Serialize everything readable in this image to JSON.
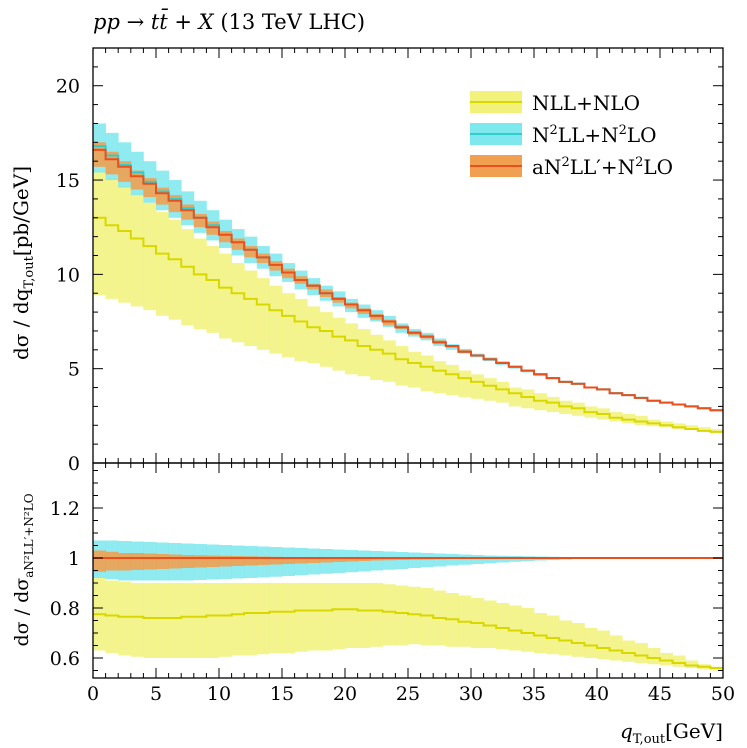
{
  "chart_data": {
    "type": "line",
    "title": "pp → tt̄ + X (13 TeV LHC)",
    "title_parts": {
      "proc": "pp",
      "arrow": " → ",
      "tt": "tt̄",
      "plusx": " + X",
      "energy": " (13 TeV LHC)"
    },
    "xlabel": {
      "q": "q",
      "sub": "T,out",
      "unit": "[GeV]"
    },
    "ylabel_main": {
      "d1": "dσ",
      "slash": " / ",
      "d2": "dq",
      "sub": "T,out",
      "unit": "[pb/GeV]"
    },
    "ylabel_ratio": {
      "d1": "dσ",
      "slash": " / ",
      "d2": "dσ",
      "sub": "aN²LL′+N²LO"
    },
    "xlim": [
      0,
      50
    ],
    "ylim_main": [
      0,
      22
    ],
    "ylim_ratio": [
      0.52,
      1.38
    ],
    "xticks": [
      "0",
      "5",
      "10",
      "15",
      "20",
      "25",
      "30",
      "35",
      "40",
      "45",
      "50"
    ],
    "yticks_main": [
      "0",
      "5",
      "10",
      "15",
      "20"
    ],
    "yticks_ratio": [
      "0.6",
      "0.8",
      "1",
      "1.2"
    ],
    "legend": {
      "placement": "top-right",
      "entries": [
        {
          "base": "NLL+NLO"
        },
        {
          "base": "N",
          "sup1": "2",
          "mid": "LL+N",
          "sup2": "2",
          "end": "LO"
        },
        {
          "base": "aN",
          "sup1": "2",
          "mid": "LL′+N",
          "sup2": "2",
          "end": "LO"
        }
      ]
    },
    "bin_width": 1,
    "series": [
      {
        "name": "NLL+NLO",
        "line_color": "#d8d800",
        "band_color": "#f2f27a",
        "central": [
          13.0,
          12.6,
          12.3,
          11.9,
          11.5,
          11.1,
          10.8,
          10.4,
          10.0,
          9.7,
          9.3,
          9.0,
          8.7,
          8.4,
          8.1,
          7.8,
          7.5,
          7.2,
          7.0,
          6.7,
          6.5,
          6.2,
          6.0,
          5.8,
          5.5,
          5.3,
          5.1,
          4.9,
          4.7,
          4.5,
          4.3,
          4.1,
          3.9,
          3.7,
          3.5,
          3.3,
          3.2,
          3.0,
          2.9,
          2.7,
          2.6,
          2.4,
          2.3,
          2.2,
          2.1,
          2.0,
          1.9,
          1.8,
          1.7,
          1.65
        ],
        "lower": [
          8.9,
          8.7,
          8.5,
          8.3,
          8.1,
          7.8,
          7.6,
          7.3,
          7.1,
          6.9,
          6.6,
          6.4,
          6.2,
          6.0,
          5.8,
          5.6,
          5.4,
          5.3,
          5.1,
          4.9,
          4.7,
          4.6,
          4.4,
          4.3,
          4.1,
          4.0,
          3.8,
          3.7,
          3.6,
          3.5,
          3.4,
          3.3,
          3.2,
          3.0,
          2.9,
          2.8,
          2.7,
          2.6,
          2.5,
          2.4,
          2.3,
          2.2,
          2.1,
          2.0,
          1.95,
          1.9,
          1.8,
          1.75,
          1.7,
          1.62
        ],
        "upper": [
          15.5,
          15.1,
          14.7,
          14.3,
          13.8,
          13.3,
          12.9,
          12.4,
          11.9,
          11.5,
          11.1,
          10.6,
          10.2,
          9.8,
          9.4,
          9.0,
          8.7,
          8.3,
          8.0,
          7.7,
          7.4,
          7.1,
          6.8,
          6.5,
          6.2,
          5.9,
          5.7,
          5.4,
          5.2,
          4.9,
          4.7,
          4.5,
          4.3,
          4.0,
          3.9,
          3.7,
          3.5,
          3.3,
          3.2,
          3.0,
          2.9,
          2.7,
          2.6,
          2.5,
          2.3,
          2.2,
          2.1,
          2.0,
          1.9,
          1.8
        ],
        "ratio_central": [
          0.775,
          0.77,
          0.765,
          0.765,
          0.76,
          0.76,
          0.76,
          0.765,
          0.765,
          0.77,
          0.77,
          0.775,
          0.78,
          0.78,
          0.785,
          0.785,
          0.79,
          0.79,
          0.79,
          0.795,
          0.795,
          0.79,
          0.79,
          0.785,
          0.78,
          0.775,
          0.77,
          0.76,
          0.755,
          0.745,
          0.74,
          0.73,
          0.72,
          0.71,
          0.7,
          0.69,
          0.68,
          0.67,
          0.66,
          0.65,
          0.64,
          0.63,
          0.62,
          0.61,
          0.6,
          0.59,
          0.58,
          0.57,
          0.565,
          0.56
        ],
        "ratio_lower": [
          0.63,
          0.62,
          0.61,
          0.605,
          0.6,
          0.6,
          0.6,
          0.6,
          0.6,
          0.6,
          0.605,
          0.61,
          0.61,
          0.615,
          0.62,
          0.62,
          0.625,
          0.63,
          0.63,
          0.635,
          0.64,
          0.64,
          0.645,
          0.65,
          0.65,
          0.655,
          0.65,
          0.65,
          0.645,
          0.645,
          0.64,
          0.64,
          0.635,
          0.63,
          0.625,
          0.62,
          0.615,
          0.61,
          0.605,
          0.6,
          0.595,
          0.59,
          0.585,
          0.58,
          0.575,
          0.57,
          0.565,
          0.56,
          0.555,
          0.55
        ],
        "ratio_upper": [
          0.92,
          0.91,
          0.905,
          0.9,
          0.9,
          0.9,
          0.9,
          0.9,
          0.9,
          0.9,
          0.9,
          0.9,
          0.9,
          0.9,
          0.9,
          0.9,
          0.9,
          0.9,
          0.9,
          0.9,
          0.9,
          0.9,
          0.9,
          0.895,
          0.89,
          0.885,
          0.88,
          0.87,
          0.86,
          0.85,
          0.84,
          0.83,
          0.82,
          0.81,
          0.8,
          0.78,
          0.77,
          0.75,
          0.74,
          0.72,
          0.71,
          0.69,
          0.67,
          0.66,
          0.64,
          0.62,
          0.61,
          0.59,
          0.575,
          0.565
        ]
      },
      {
        "name": "N²LL+N²LO",
        "line_color": "#33cccc",
        "band_color": "#7de8ee",
        "central": [
          16.8,
          16.3,
          15.8,
          15.4,
          14.9,
          14.4,
          14.0,
          13.5,
          13.0,
          12.6,
          12.1,
          11.7,
          11.3,
          10.9,
          10.5,
          10.1,
          9.7,
          9.4,
          9.0,
          8.7,
          8.4,
          8.1,
          7.8,
          7.5,
          7.2,
          6.9,
          6.7,
          6.4,
          6.2,
          5.9,
          5.7,
          5.5,
          5.3,
          5.1,
          4.9,
          4.7,
          4.5,
          4.3,
          4.2,
          4.0,
          3.9,
          3.7,
          3.6,
          3.45,
          3.3,
          3.2,
          3.1,
          3.0,
          2.9,
          2.8
        ],
        "lower": [
          15.4,
          15.0,
          14.6,
          14.2,
          13.8,
          13.4,
          13.0,
          12.6,
          12.2,
          11.8,
          11.4,
          11.0,
          10.6,
          10.3,
          9.9,
          9.6,
          9.2,
          8.9,
          8.6,
          8.3,
          8.0,
          7.7,
          7.5,
          7.2,
          6.9,
          6.7,
          6.5,
          6.2,
          6.0,
          5.8,
          5.6,
          5.4,
          5.2,
          5.0,
          4.8,
          4.6,
          4.45,
          4.3,
          4.15,
          4.0,
          3.85,
          3.7,
          3.55,
          3.45,
          3.3,
          3.2,
          3.1,
          3.0,
          2.9,
          2.8
        ],
        "upper": [
          18.0,
          17.5,
          17.0,
          16.5,
          16.0,
          15.5,
          15.0,
          14.4,
          13.9,
          13.4,
          12.9,
          12.4,
          12.0,
          11.5,
          11.1,
          10.6,
          10.2,
          9.8,
          9.4,
          9.1,
          8.7,
          8.4,
          8.1,
          7.8,
          7.4,
          7.1,
          6.9,
          6.6,
          6.3,
          6.05,
          5.8,
          5.6,
          5.4,
          5.15,
          4.95,
          4.75,
          4.55,
          4.35,
          4.2,
          4.05,
          3.9,
          3.75,
          3.6,
          3.45,
          3.3,
          3.2,
          3.1,
          3.0,
          2.9,
          2.8
        ],
        "ratio_central": [
          1.0,
          1.0,
          1.0,
          1.0,
          1.0,
          1.0,
          1.0,
          1.0,
          1.0,
          1.0,
          1.0,
          1.0,
          1.0,
          1.0,
          1.0,
          1.0,
          1.0,
          1.0,
          1.0,
          1.0,
          1.0,
          1.0,
          1.0,
          1.0,
          1.0,
          1.0,
          1.0,
          1.0,
          1.0,
          1.0,
          1.0,
          1.0,
          1.0,
          1.0,
          1.0,
          1.0,
          1.0,
          1.0,
          1.0,
          1.0,
          1.0,
          1.0,
          1.0,
          1.0,
          1.0,
          1.0,
          1.0,
          1.0,
          1.0,
          1.0
        ],
        "ratio_lower": [
          0.92,
          0.915,
          0.91,
          0.91,
          0.91,
          0.91,
          0.91,
          0.91,
          0.912,
          0.914,
          0.916,
          0.918,
          0.92,
          0.922,
          0.925,
          0.928,
          0.931,
          0.934,
          0.937,
          0.94,
          0.943,
          0.946,
          0.95,
          0.953,
          0.956,
          0.96,
          0.963,
          0.966,
          0.97,
          0.973,
          0.976,
          0.979,
          0.982,
          0.985,
          0.988,
          0.99,
          0.992,
          0.994,
          0.996,
          0.997,
          0.998,
          0.999,
          0.999,
          1.0,
          1.0,
          1.0,
          1.0,
          1.0,
          1.0,
          1.0
        ],
        "ratio_upper": [
          1.07,
          1.07,
          1.068,
          1.066,
          1.064,
          1.062,
          1.06,
          1.058,
          1.056,
          1.054,
          1.052,
          1.05,
          1.048,
          1.046,
          1.044,
          1.042,
          1.04,
          1.038,
          1.036,
          1.034,
          1.032,
          1.03,
          1.028,
          1.026,
          1.024,
          1.022,
          1.02,
          1.018,
          1.016,
          1.014,
          1.012,
          1.01,
          1.009,
          1.008,
          1.007,
          1.006,
          1.005,
          1.004,
          1.003,
          1.002,
          1.002,
          1.001,
          1.001,
          1.001,
          1.0,
          1.0,
          1.0,
          1.0,
          1.0,
          1.0
        ]
      },
      {
        "name": "aN²LL′+N²LO",
        "line_color": "#e8501e",
        "band_color": "#f0a050",
        "central": [
          16.6,
          16.1,
          15.7,
          15.2,
          14.8,
          14.3,
          13.9,
          13.4,
          13.0,
          12.5,
          12.1,
          11.7,
          11.3,
          10.9,
          10.5,
          10.1,
          9.7,
          9.4,
          9.0,
          8.7,
          8.4,
          8.1,
          7.8,
          7.5,
          7.2,
          6.9,
          6.7,
          6.4,
          6.2,
          5.9,
          5.7,
          5.5,
          5.3,
          5.1,
          4.9,
          4.7,
          4.5,
          4.3,
          4.2,
          4.0,
          3.9,
          3.7,
          3.6,
          3.45,
          3.3,
          3.2,
          3.1,
          3.0,
          2.9,
          2.8
        ],
        "lower": [
          15.7,
          15.3,
          14.9,
          14.5,
          14.1,
          13.7,
          13.3,
          12.9,
          12.5,
          12.1,
          11.7,
          11.3,
          10.9,
          10.6,
          10.2,
          9.8,
          9.5,
          9.2,
          8.8,
          8.5,
          8.2,
          7.9,
          7.6,
          7.3,
          7.1,
          6.8,
          6.6,
          6.3,
          6.1,
          5.85,
          5.65,
          5.45,
          5.25,
          5.05,
          4.85,
          4.65,
          4.45,
          4.3,
          4.15,
          4.0,
          3.85,
          3.7,
          3.55,
          3.45,
          3.3,
          3.2,
          3.1,
          3.0,
          2.9,
          2.8
        ],
        "upper": [
          17.0,
          16.5,
          16.0,
          15.5,
          15.1,
          14.6,
          14.2,
          13.7,
          13.2,
          12.8,
          12.3,
          11.9,
          11.5,
          11.1,
          10.7,
          10.3,
          9.9,
          9.5,
          9.2,
          8.8,
          8.5,
          8.2,
          7.9,
          7.6,
          7.3,
          7.0,
          6.8,
          6.5,
          6.25,
          6.0,
          5.75,
          5.55,
          5.35,
          5.15,
          4.95,
          4.75,
          4.55,
          4.35,
          4.2,
          4.05,
          3.9,
          3.75,
          3.6,
          3.45,
          3.3,
          3.2,
          3.1,
          3.0,
          2.9,
          2.8
        ],
        "ratio_central": [
          1.0,
          1.0,
          1.0,
          1.0,
          1.0,
          1.0,
          1.0,
          1.0,
          1.0,
          1.0,
          1.0,
          1.0,
          1.0,
          1.0,
          1.0,
          1.0,
          1.0,
          1.0,
          1.0,
          1.0,
          1.0,
          1.0,
          1.0,
          1.0,
          1.0,
          1.0,
          1.0,
          1.0,
          1.0,
          1.0,
          1.0,
          1.0,
          1.0,
          1.0,
          1.0,
          1.0,
          1.0,
          1.0,
          1.0,
          1.0,
          1.0,
          1.0,
          1.0,
          1.0,
          1.0,
          1.0,
          1.0,
          1.0,
          1.0,
          1.0
        ],
        "ratio_lower": [
          0.945,
          0.95,
          0.95,
          0.952,
          0.954,
          0.956,
          0.958,
          0.96,
          0.962,
          0.964,
          0.966,
          0.968,
          0.97,
          0.972,
          0.974,
          0.976,
          0.978,
          0.98,
          0.982,
          0.984,
          0.986,
          0.988,
          0.99,
          0.991,
          0.992,
          0.993,
          0.994,
          0.995,
          0.996,
          0.997,
          0.998,
          0.998,
          0.999,
          0.999,
          0.999,
          1.0,
          1.0,
          1.0,
          1.0,
          1.0,
          1.0,
          1.0,
          1.0,
          1.0,
          1.0,
          1.0,
          1.0,
          1.0,
          1.0,
          1.0
        ],
        "ratio_upper": [
          1.03,
          1.025,
          1.02,
          1.02,
          1.018,
          1.016,
          1.014,
          1.012,
          1.011,
          1.01,
          1.009,
          1.008,
          1.007,
          1.006,
          1.005,
          1.004,
          1.004,
          1.003,
          1.003,
          1.002,
          1.002,
          1.002,
          1.001,
          1.001,
          1.001,
          1.001,
          1.0,
          1.0,
          1.0,
          1.0,
          1.0,
          1.0,
          1.0,
          1.0,
          1.0,
          1.0,
          1.0,
          1.0,
          1.0,
          1.0,
          1.0,
          1.0,
          1.0,
          1.0,
          1.0,
          1.0,
          1.0,
          1.0,
          1.0,
          1.0
        ]
      }
    ]
  }
}
